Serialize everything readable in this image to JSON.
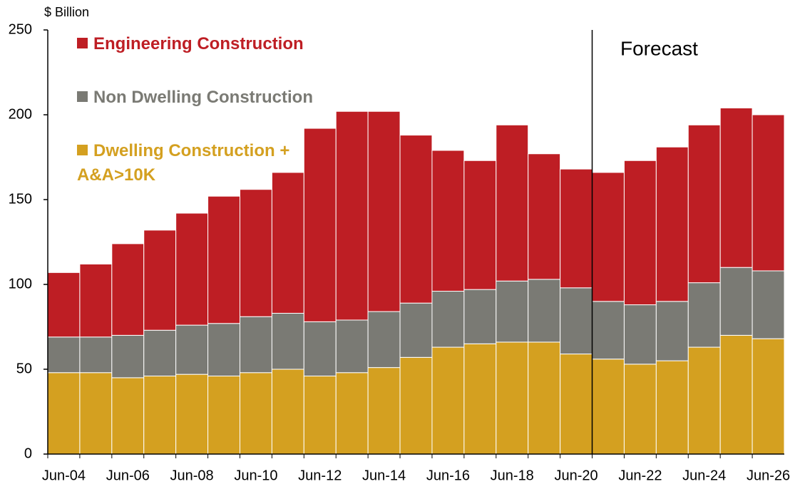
{
  "chart_data": {
    "type": "stacked-bar",
    "y_label": "$ Billion",
    "annotation": "Forecast",
    "categories": [
      "Jun-04",
      null,
      "Jun-06",
      null,
      "Jun-08",
      null,
      "Jun-10",
      null,
      "Jun-12",
      null,
      "Jun-14",
      null,
      "Jun-16",
      null,
      "Jun-18",
      null,
      "Jun-20",
      null,
      "Jun-22",
      null,
      "Jun-24",
      null,
      "Jun-26"
    ],
    "series": [
      {
        "name": "Engineering Construction",
        "color": "#be1e24",
        "values": [
          38,
          43,
          54,
          59,
          66,
          75,
          75,
          83,
          114,
          123,
          118,
          99,
          83,
          76,
          92,
          74,
          70,
          76,
          85,
          91,
          93,
          94,
          92
        ]
      },
      {
        "name": "Non Dwelling Construction",
        "color": "#7a7a74",
        "values": [
          21,
          21,
          25,
          27,
          29,
          31,
          33,
          33,
          32,
          31,
          33,
          32,
          33,
          32,
          36,
          37,
          39,
          34,
          35,
          35,
          38,
          40,
          40
        ]
      },
      {
        "name": "Dwelling Construction + A&A>10K",
        "color": "#d4a020",
        "values": [
          48,
          48,
          45,
          46,
          47,
          46,
          48,
          50,
          46,
          48,
          51,
          57,
          63,
          65,
          66,
          66,
          59,
          56,
          53,
          55,
          63,
          70,
          68
        ]
      }
    ],
    "ylim": [
      0,
      250
    ],
    "yticks": [
      0,
      50,
      100,
      150,
      200,
      250
    ],
    "grid": false
  }
}
